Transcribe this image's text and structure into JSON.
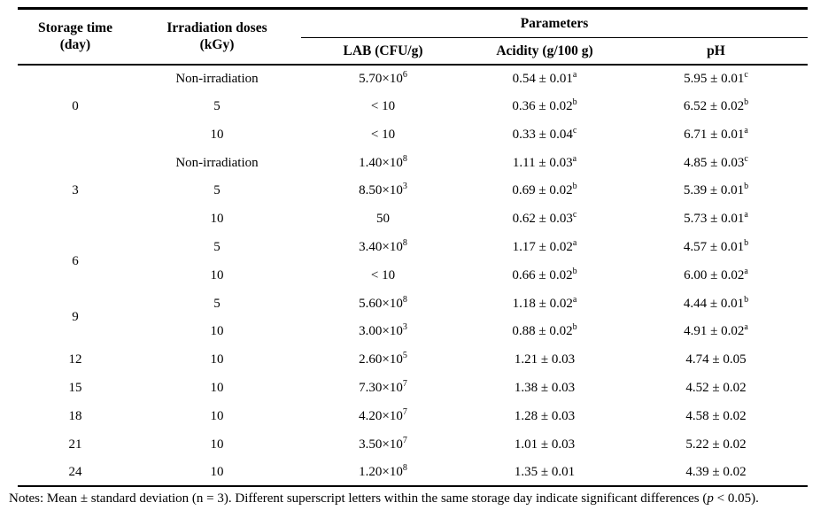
{
  "table": {
    "header": {
      "storage_time": {
        "line1": "Storage time",
        "line2": "(day)"
      },
      "irradiation_doses": {
        "line1": "Irradiation doses",
        "line2": "(kGy)"
      },
      "parameters_label": "Parameters",
      "sub_columns": [
        "LAB (CFU/g)",
        "Acidity (g/100 g)",
        "pH"
      ]
    },
    "rows": [
      {
        "day": "0",
        "day_rowspan": 3,
        "dose": "Non-irradiation",
        "lab": {
          "base": "5.70×10",
          "exp": "6"
        },
        "acidity": {
          "value": "0.54 ± 0.01",
          "sup": "a"
        },
        "ph": {
          "value": "5.95 ± 0.01",
          "sup": "c"
        }
      },
      {
        "dose": "5",
        "lab": {
          "base": "< 10"
        },
        "acidity": {
          "value": "0.36 ± 0.02",
          "sup": "b"
        },
        "ph": {
          "value": "6.52 ± 0.02",
          "sup": "b"
        }
      },
      {
        "dose": "10",
        "lab": {
          "base": "< 10"
        },
        "acidity": {
          "value": "0.33 ± 0.04",
          "sup": "c"
        },
        "ph": {
          "value": "6.71 ± 0.01",
          "sup": "a"
        }
      },
      {
        "day": "3",
        "day_rowspan": 3,
        "dose": "Non-irradiation",
        "lab": {
          "base": "1.40×10",
          "exp": "8"
        },
        "acidity": {
          "value": "1.11 ± 0.03",
          "sup": "a"
        },
        "ph": {
          "value": "4.85 ± 0.03",
          "sup": "c"
        }
      },
      {
        "dose": "5",
        "lab": {
          "base": "8.50×10",
          "exp": "3"
        },
        "acidity": {
          "value": "0.69 ± 0.02",
          "sup": "b"
        },
        "ph": {
          "value": "5.39 ± 0.01",
          "sup": "b"
        }
      },
      {
        "dose": "10",
        "lab": {
          "base": "50"
        },
        "acidity": {
          "value": "0.62 ± 0.03",
          "sup": "c"
        },
        "ph": {
          "value": "5.73 ± 0.01",
          "sup": "a"
        }
      },
      {
        "day": "6",
        "day_rowspan": 2,
        "dose": "5",
        "lab": {
          "base": "3.40×10",
          "exp": "8"
        },
        "acidity": {
          "value": "1.17 ± 0.02",
          "sup": "a"
        },
        "ph": {
          "value": "4.57 ± 0.01",
          "sup": "b"
        }
      },
      {
        "dose": "10",
        "lab": {
          "base": "< 10"
        },
        "acidity": {
          "value": "0.66 ± 0.02",
          "sup": "b"
        },
        "ph": {
          "value": "6.00 ± 0.02",
          "sup": "a"
        }
      },
      {
        "day": "9",
        "day_rowspan": 2,
        "dose": "5",
        "lab": {
          "base": "5.60×10",
          "exp": "8"
        },
        "acidity": {
          "value": "1.18 ± 0.02",
          "sup": "a"
        },
        "ph": {
          "value": "4.44 ± 0.01",
          "sup": "b"
        }
      },
      {
        "dose": "10",
        "lab": {
          "base": "3.00×10",
          "exp": "3"
        },
        "acidity": {
          "value": "0.88 ± 0.02",
          "sup": "b"
        },
        "ph": {
          "value": "4.91 ± 0.02",
          "sup": "a"
        }
      },
      {
        "day": "12",
        "day_rowspan": 1,
        "dose": "10",
        "lab": {
          "base": "2.60×10",
          "exp": "5"
        },
        "acidity": {
          "value": "1.21 ± 0.03"
        },
        "ph": {
          "value": "4.74 ± 0.05"
        }
      },
      {
        "day": "15",
        "day_rowspan": 1,
        "dose": "10",
        "lab": {
          "base": "7.30×10",
          "exp": "7"
        },
        "acidity": {
          "value": "1.38 ± 0.03"
        },
        "ph": {
          "value": "4.52 ± 0.02"
        }
      },
      {
        "day": "18",
        "day_rowspan": 1,
        "dose": "10",
        "lab": {
          "base": "4.20×10",
          "exp": "7"
        },
        "acidity": {
          "value": "1.28 ± 0.03"
        },
        "ph": {
          "value": "4.58 ± 0.02"
        }
      },
      {
        "day": "21",
        "day_rowspan": 1,
        "dose": "10",
        "lab": {
          "base": "3.50×10",
          "exp": "7"
        },
        "acidity": {
          "value": "1.01 ± 0.03"
        },
        "ph": {
          "value": "5.22 ± 0.02"
        }
      },
      {
        "day": "24",
        "day_rowspan": 1,
        "dose": "10",
        "lab": {
          "base": "1.20×10",
          "exp": "8"
        },
        "acidity": {
          "value": "1.35 ± 0.01"
        },
        "ph": {
          "value": "4.39 ± 0.02"
        }
      }
    ]
  },
  "notes": {
    "before_p": "Notes: Mean ± standard deviation (n = 3). Different superscript letters within the same storage day indicate significant differences (",
    "p": "p",
    "after_p": " < 0.05)."
  }
}
